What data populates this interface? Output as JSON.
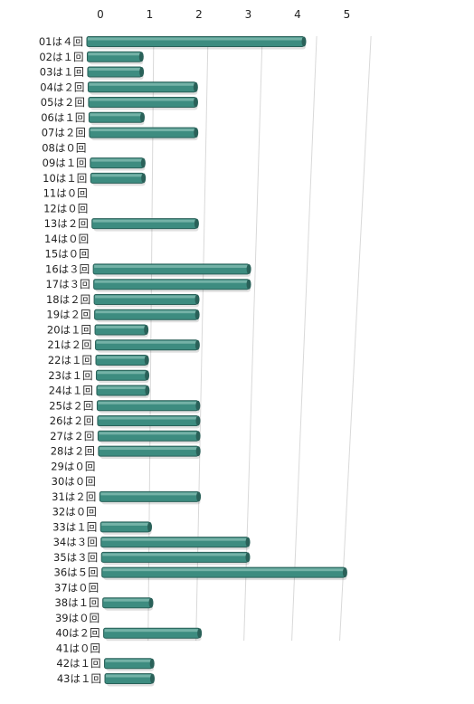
{
  "chart_data": {
    "type": "bar",
    "orientation": "horizontal",
    "style": "3d",
    "bar_color": "#3d8c80",
    "bar_side_color": "#2a6159",
    "bar_top_color": "#8bc2b8",
    "grid": true,
    "xlim": [
      0,
      5
    ],
    "x_ticks": [
      "0",
      "1",
      "2",
      "3",
      "4",
      "5"
    ],
    "categories": [
      "01は４回",
      "02は１回",
      "03は１回",
      "04は２回",
      "05は２回",
      "06は１回",
      "07は２回",
      "08は０回",
      "09は１回",
      "10は１回",
      "11は０回",
      "12は０回",
      "13は２回",
      "14は０回",
      "15は０回",
      "16は３回",
      "17は３回",
      "18は２回",
      "19は２回",
      "20は１回",
      "21は２回",
      "22は１回",
      "23は１回",
      "24は１回",
      "25は２回",
      "26は２回",
      "27は２回",
      "28は２回",
      "29は０回",
      "30は０回",
      "31は２回",
      "32は０回",
      "33は１回",
      "34は３回",
      "35は３回",
      "36は５回",
      "37は０回",
      "38は１回",
      "39は０回",
      "40は２回",
      "41は０回",
      "42は１回",
      "43は１回"
    ],
    "values": [
      4,
      1,
      1,
      2,
      2,
      1,
      2,
      0,
      1,
      1,
      0,
      0,
      2,
      0,
      0,
      3,
      3,
      2,
      2,
      1,
      2,
      1,
      1,
      1,
      2,
      2,
      2,
      2,
      0,
      0,
      2,
      0,
      1,
      3,
      3,
      5,
      0,
      1,
      0,
      2,
      0,
      1,
      1
    ]
  }
}
